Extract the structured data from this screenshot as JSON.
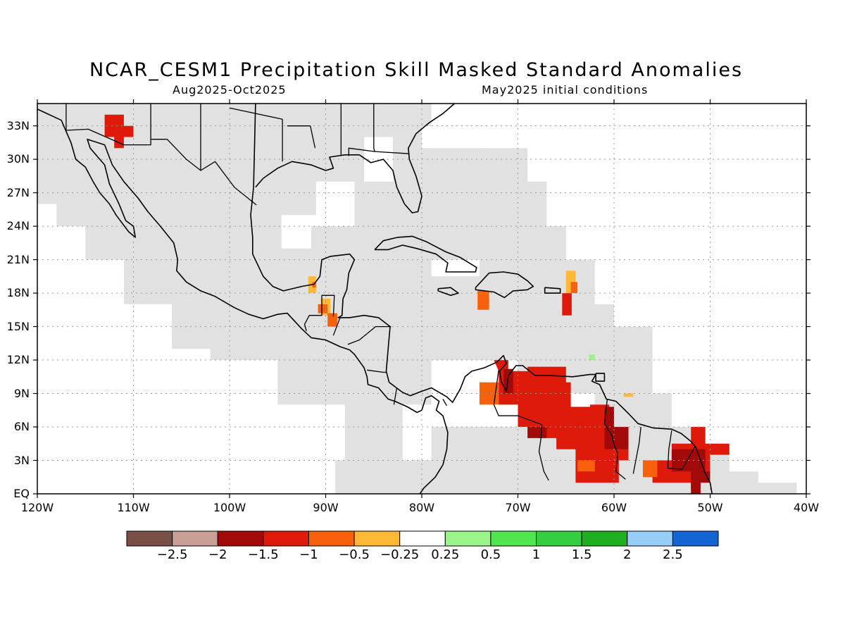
{
  "header": {
    "title": "NCAR_CESM1 Precipitation Skill Masked Standard Anomalies",
    "season": "Aug2025-Oct2025",
    "init": "May2025 initial conditions"
  },
  "map": {
    "lon_range": [
      -120,
      -40
    ],
    "lat_range": [
      0,
      35
    ],
    "lat_ticks": [
      "33N",
      "30N",
      "27N",
      "24N",
      "21N",
      "18N",
      "15N",
      "12N",
      "9N",
      "6N",
      "3N",
      "EQ"
    ],
    "lat_values": [
      33,
      30,
      27,
      24,
      21,
      18,
      15,
      12,
      9,
      6,
      3,
      0
    ],
    "lon_ticks": [
      "120W",
      "110W",
      "100W",
      "90W",
      "80W",
      "70W",
      "60W",
      "50W",
      "40W"
    ],
    "lon_values": [
      -120,
      -110,
      -100,
      -90,
      -80,
      -70,
      -60,
      -50,
      -40
    ],
    "grid": "dotted",
    "mask_color": "#e1e1e1",
    "coastline_color": "#000000"
  },
  "colorbar": {
    "colors": [
      "#7a5046",
      "#c99e94",
      "#a20a0a",
      "#de1b0a",
      "#f7600c",
      "#fdb838",
      "#ffffff",
      "#9af48a",
      "#4fe64f",
      "#35ce42",
      "#1eb021",
      "#96cef7",
      "#1464d2"
    ],
    "labels": [
      "−2.5",
      "−2",
      "−1.5",
      "−1",
      "−0.5",
      "−0.25",
      "0.25",
      "0.5",
      "1",
      "1.5",
      "2",
      "2.5"
    ]
  }
}
